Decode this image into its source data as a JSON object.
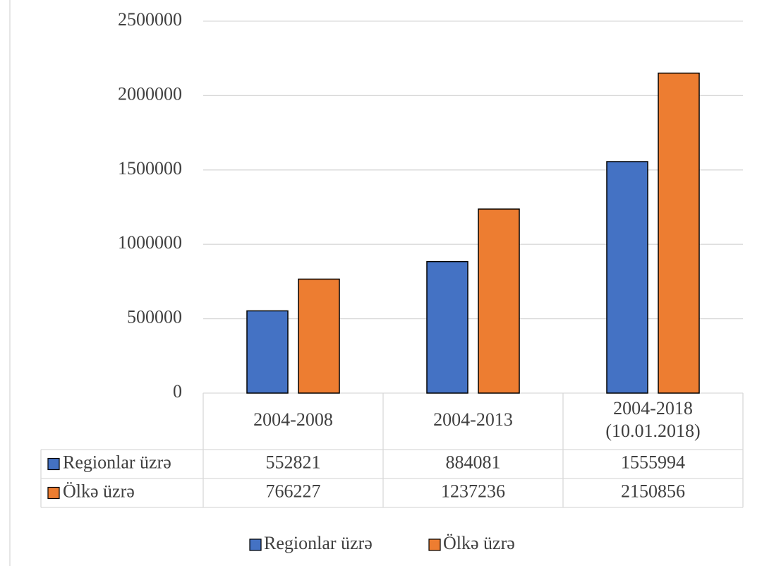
{
  "chart_data": {
    "type": "bar",
    "categories": [
      "2004-2008",
      "2004-2013",
      "2004-2018 (10.01.2018)"
    ],
    "series": [
      {
        "name": "Regionlar üzrə",
        "color": "#4472c4",
        "values": [
          552821,
          884081,
          1555994
        ]
      },
      {
        "name": "Ölkə üzrə",
        "color": "#ed7d31",
        "values": [
          766227,
          1237236,
          2150856
        ]
      }
    ],
    "ylim": [
      0,
      2500000
    ],
    "yticks": [
      0,
      500000,
      1000000,
      1500000,
      2000000,
      2500000
    ],
    "grid": true,
    "data_table": true,
    "legend": "bottom"
  }
}
